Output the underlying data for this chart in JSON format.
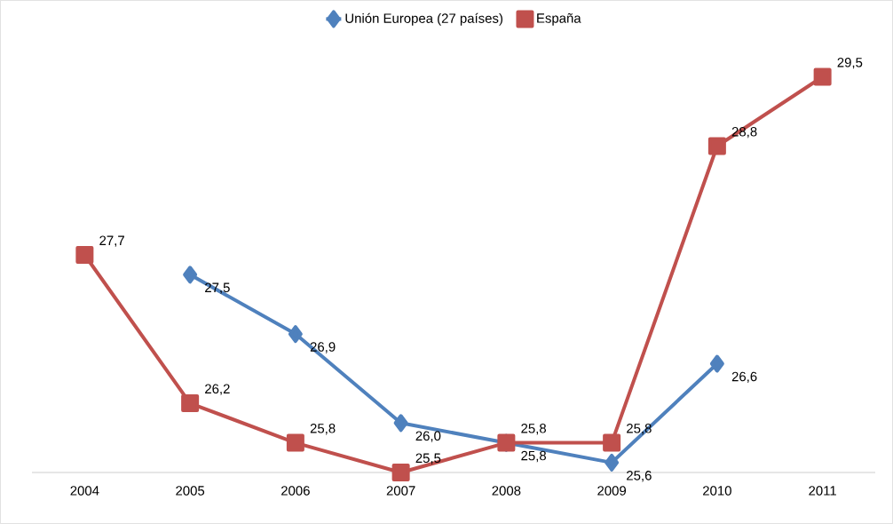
{
  "chart_data": {
    "type": "line",
    "categories": [
      "2004",
      "2005",
      "2006",
      "2007",
      "2008",
      "2009",
      "2010",
      "2011"
    ],
    "series": [
      {
        "name": "Unión Europea (27 países)",
        "color": "#4f81bd",
        "marker": "diamond",
        "values": [
          null,
          27.5,
          26.9,
          26.0,
          25.8,
          25.6,
          26.6,
          null
        ],
        "value_labels": [
          null,
          "27,5",
          "26,9",
          "26,0",
          "25,8",
          "25,6",
          "26,6",
          null
        ]
      },
      {
        "name": "España",
        "color": "#c0504d",
        "marker": "square",
        "values": [
          27.7,
          26.2,
          25.8,
          25.5,
          25.8,
          25.8,
          28.8,
          29.5
        ],
        "value_labels": [
          "27,7",
          "26,2",
          "25,8",
          "25,5",
          "25,8",
          "25,8",
          "28,8",
          "29,5"
        ]
      }
    ],
    "tick_labels": "x",
    "legend": "top"
  }
}
